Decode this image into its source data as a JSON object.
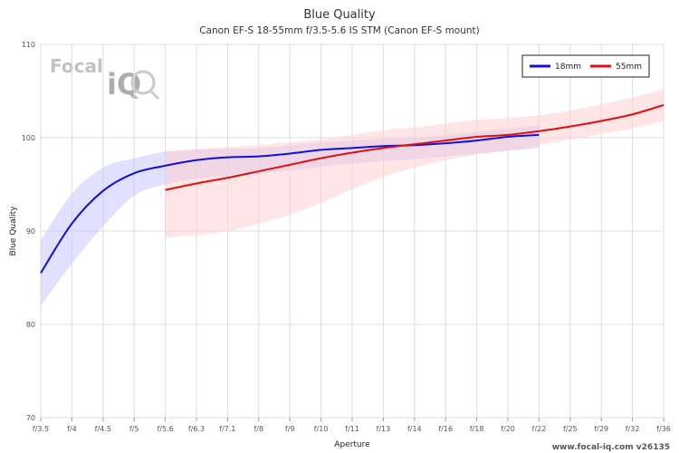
{
  "chart_data": {
    "type": "line",
    "title": "Blue Quality",
    "subtitle": "Canon EF-S 18-55mm f/3.5-5.6 IS STM (Canon EF-S mount)",
    "xlabel": "Aperture",
    "ylabel": "Blue Quality",
    "ylim": [
      70,
      110
    ],
    "yticks": [
      70,
      80,
      90,
      100,
      110
    ],
    "categories": [
      "f/3.5",
      "f/4",
      "f/4.5",
      "f/5",
      "f/5.6",
      "f/6.3",
      "f/7.1",
      "f/8",
      "f/9",
      "f/10",
      "f/11",
      "f/13",
      "f/14",
      "f/16",
      "f/18",
      "f/20",
      "f/22",
      "f/25",
      "f/29",
      "f/32",
      "f/36"
    ],
    "grid": true,
    "legend_position": "top-right",
    "series": [
      {
        "name": "18mm",
        "color": "#1010dd",
        "band_color": "#c8c8ff",
        "x": [
          "f/3.5",
          "f/4",
          "f/4.5",
          "f/5",
          "f/5.6",
          "f/6.3",
          "f/7.1",
          "f/8",
          "f/9",
          "f/10",
          "f/11",
          "f/13",
          "f/14",
          "f/16",
          "f/18",
          "f/20",
          "f/22"
        ],
        "values": [
          85.5,
          90.8,
          94.3,
          96.2,
          97.0,
          97.6,
          97.9,
          98.0,
          98.3,
          98.7,
          98.9,
          99.1,
          99.2,
          99.4,
          99.7,
          100.1,
          100.3
        ],
        "lower": [
          82.0,
          86.5,
          90.5,
          93.8,
          95.0,
          95.6,
          95.9,
          96.1,
          96.5,
          96.9,
          97.2,
          97.5,
          97.7,
          98.0,
          98.3,
          98.6,
          98.9
        ],
        "upper": [
          89.0,
          94.0,
          96.8,
          97.8,
          98.5,
          98.7,
          98.8,
          98.9,
          99.2,
          99.5,
          99.7,
          99.9,
          100.0,
          100.3,
          100.6,
          101.0,
          101.3
        ]
      },
      {
        "name": "55mm",
        "color": "#dd1010",
        "band_color": "#ffd0d0",
        "x": [
          "f/5.6",
          "f/6.3",
          "f/7.1",
          "f/8",
          "f/9",
          "f/10",
          "f/11",
          "f/13",
          "f/14",
          "f/16",
          "f/18",
          "f/20",
          "f/22",
          "f/25",
          "f/29",
          "f/32",
          "f/36"
        ],
        "values": [
          94.4,
          95.1,
          95.7,
          96.4,
          97.1,
          97.8,
          98.4,
          98.9,
          99.3,
          99.7,
          100.1,
          100.3,
          100.7,
          101.2,
          101.8,
          102.5,
          103.5
        ],
        "lower": [
          89.3,
          89.6,
          90.0,
          90.8,
          91.8,
          93.0,
          94.5,
          95.8,
          96.8,
          97.6,
          98.2,
          98.6,
          99.2,
          99.8,
          100.4,
          101.0,
          101.8
        ],
        "upper": [
          98.5,
          98.8,
          99.0,
          99.2,
          99.5,
          99.8,
          100.3,
          100.8,
          101.1,
          101.5,
          101.9,
          102.1,
          102.4,
          102.9,
          103.6,
          104.3,
          105.2
        ]
      }
    ]
  },
  "logo": {
    "text_focal": "Focal",
    "text_iq": "iQ"
  },
  "footer": "www.focal-iq.com v26135"
}
